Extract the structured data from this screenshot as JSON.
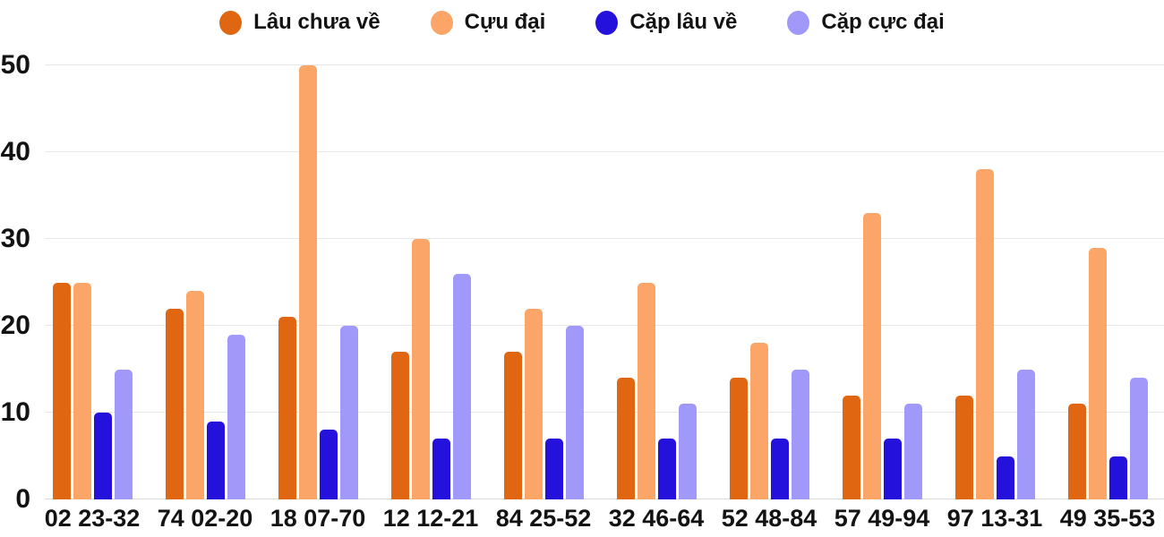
{
  "chart_data": {
    "type": "bar",
    "title": "",
    "xlabel": "",
    "ylabel": "",
    "categories": [
      "02 23-32",
      "74 02-20",
      "18 07-70",
      "12 12-21",
      "84 25-52",
      "32 46-64",
      "52 48-84",
      "57 49-94",
      "97 13-31",
      "49 35-53"
    ],
    "series": [
      {
        "name": "Lâu chưa về",
        "color": "#E06612",
        "values": [
          25,
          22,
          21,
          17,
          17,
          14,
          14,
          12,
          12,
          11
        ]
      },
      {
        "name": "Cựu đại",
        "color": "#FCA569",
        "values": [
          25,
          24,
          50,
          30,
          22,
          25,
          18,
          33,
          38,
          29
        ]
      },
      {
        "name": "Cặp lâu về",
        "color": "#2511DC",
        "values": [
          10,
          9,
          8,
          7,
          7,
          7,
          7,
          7,
          5,
          5
        ]
      },
      {
        "name": "Cặp cực đại",
        "color": "#A099FA",
        "values": [
          15,
          19,
          20,
          26,
          20,
          11,
          15,
          11,
          15,
          14
        ]
      }
    ],
    "y_ticks": [
      0,
      10,
      20,
      30,
      40,
      50
    ],
    "ylim": [
      0,
      50
    ],
    "grid": true,
    "legend_position": "top"
  },
  "colors": {
    "grid": "#e7e7e7",
    "baseline": "#d9d9d9",
    "text": "#131313",
    "background": "#ffffff"
  }
}
